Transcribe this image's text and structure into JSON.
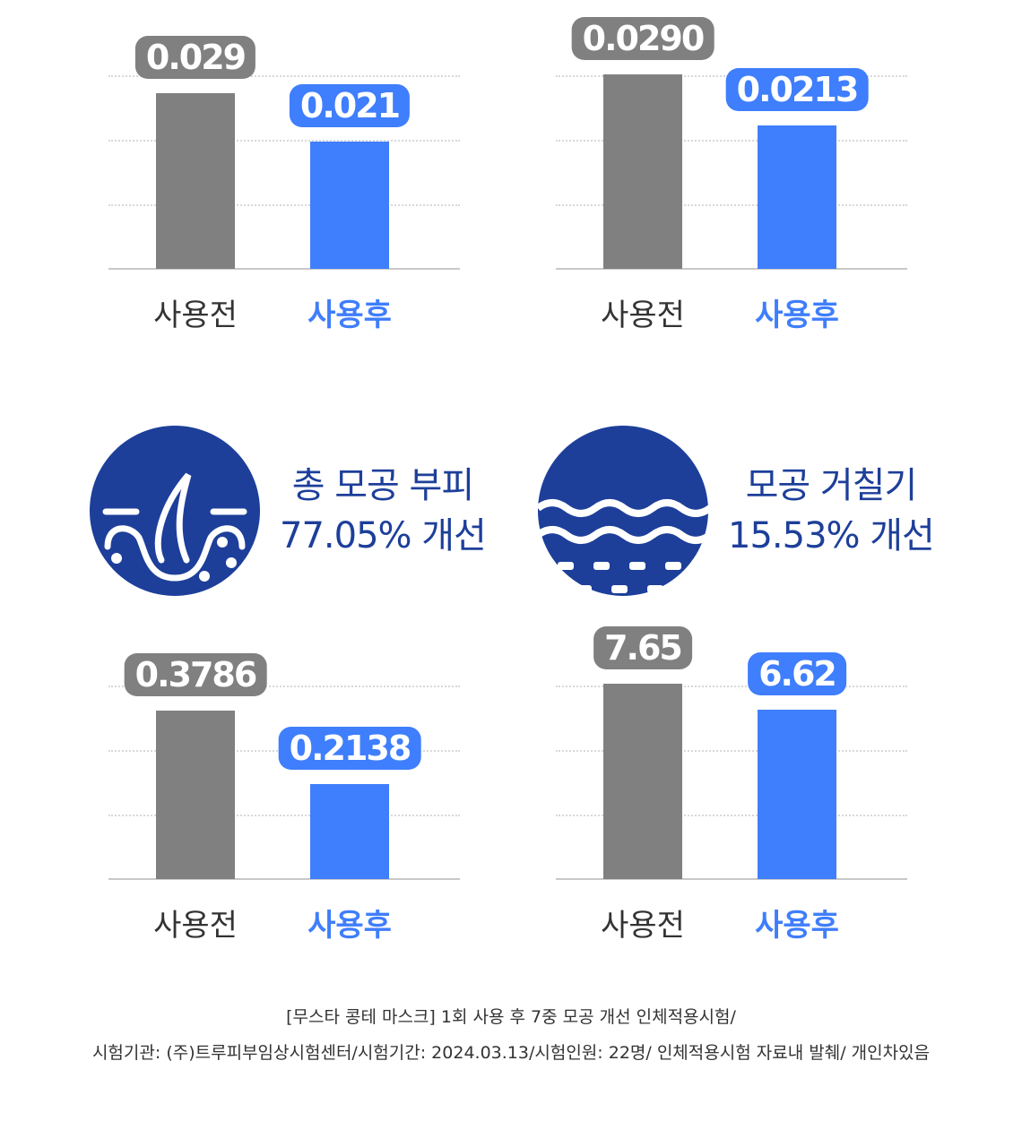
{
  "colors": {
    "before": "#808080",
    "after": "#3f7efc",
    "navy": "#1d3f9a"
  },
  "chart_data": [
    {
      "type": "bar",
      "categories": [
        "사용전",
        "사용후"
      ],
      "values": [
        0.029,
        0.021
      ],
      "labels": [
        "0.029",
        "0.021"
      ],
      "ylim": [
        0,
        0.032
      ]
    },
    {
      "type": "bar",
      "categories": [
        "사용전",
        "사용후"
      ],
      "values": [
        0.029,
        0.0213
      ],
      "labels": [
        "0.0290",
        "0.0213"
      ],
      "ylim": [
        0,
        0.0288
      ]
    },
    {
      "type": "bar",
      "categories": [
        "사용전",
        "사용후"
      ],
      "values": [
        0.3786,
        0.2138
      ],
      "labels": [
        "0.3786",
        "0.2138"
      ],
      "ylim": [
        0,
        0.435
      ]
    },
    {
      "type": "bar",
      "categories": [
        "사용전",
        "사용후"
      ],
      "values": [
        7.65,
        6.62
      ],
      "labels": [
        "7.65",
        "6.62"
      ],
      "ylim": [
        0,
        7.58
      ]
    }
  ],
  "metrics": [
    {
      "icon": "hair-follicle-icon",
      "line1": "총 모공 부피",
      "line2": "77.05% 개선"
    },
    {
      "icon": "skin-texture-waves-icon",
      "line1": "모공 거칠기",
      "line2": "15.53% 개선"
    }
  ],
  "footer": {
    "line1": "[무스타 콩테 마스크] 1회 사용 후 7중 모공 개선 인체적용시험/",
    "line2": "시험기관: (주)트루피부임상시험센터/시험기간: 2024.03.13/시험인원: 22명/ 인체적용시험 자료내 발췌/ 개인차있음"
  }
}
